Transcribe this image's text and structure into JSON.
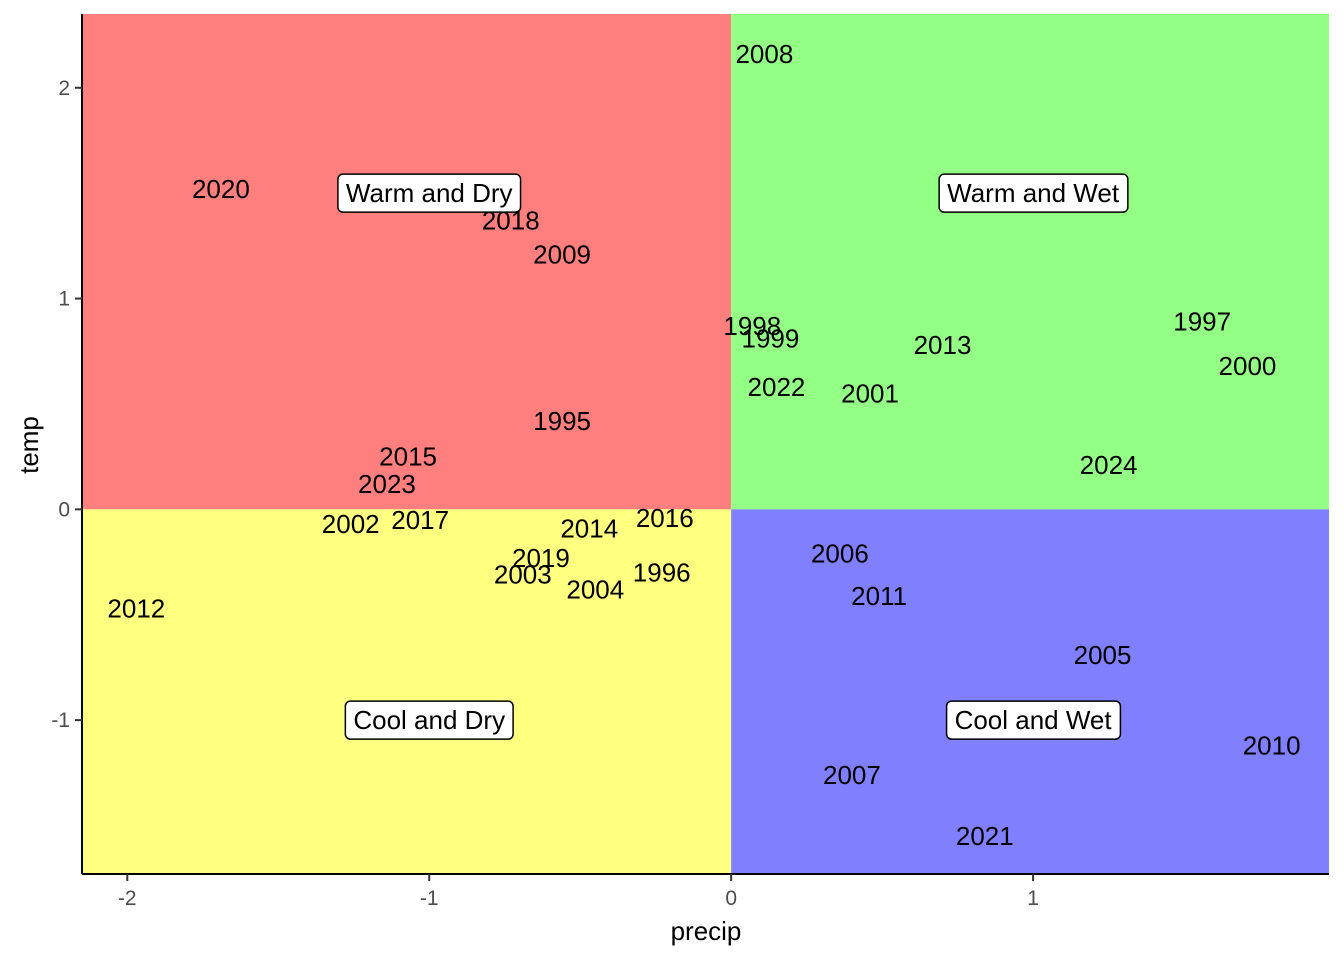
{
  "chart_data": {
    "type": "scatter",
    "xlabel": "precip",
    "ylabel": "temp",
    "xlim": [
      -2.15,
      1.98
    ],
    "ylim": [
      -1.73,
      2.35
    ],
    "x_ticks": [
      -2,
      -1,
      0,
      1
    ],
    "y_ticks": [
      -1,
      0,
      1,
      2
    ],
    "grid": false,
    "quadrants": [
      {
        "name": "Warm and Dry",
        "x_range": [
          -2.15,
          0
        ],
        "y_range": [
          0,
          2.35
        ],
        "color": "#FF7F7F",
        "label_x": -1,
        "label_y": 1.5
      },
      {
        "name": "Warm and Wet",
        "x_range": [
          0,
          1.98
        ],
        "y_range": [
          0,
          2.35
        ],
        "color": "#94FF85",
        "label_x": 1,
        "label_y": 1.5
      },
      {
        "name": "Cool and Dry",
        "x_range": [
          -2.15,
          0
        ],
        "y_range": [
          -1.73,
          0
        ],
        "color": "#FFFF80",
        "label_x": -1,
        "label_y": -1
      },
      {
        "name": "Cool and Wet",
        "x_range": [
          0,
          1.98
        ],
        "y_range": [
          -1.73,
          0
        ],
        "color": "#8080FF",
        "label_x": 1,
        "label_y": -1
      }
    ],
    "points": [
      {
        "label": "2008",
        "x": 0.11,
        "y": 2.16
      },
      {
        "label": "2020",
        "x": -1.69,
        "y": 1.52
      },
      {
        "label": "2018",
        "x": -0.73,
        "y": 1.37
      },
      {
        "label": "2009",
        "x": -0.56,
        "y": 1.21
      },
      {
        "label": "1998",
        "x": 0.07,
        "y": 0.87
      },
      {
        "label": "1999",
        "x": 0.13,
        "y": 0.81
      },
      {
        "label": "2013",
        "x": 0.7,
        "y": 0.78
      },
      {
        "label": "1997",
        "x": 1.56,
        "y": 0.89
      },
      {
        "label": "2000",
        "x": 1.71,
        "y": 0.68
      },
      {
        "label": "2022",
        "x": 0.15,
        "y": 0.58
      },
      {
        "label": "2001",
        "x": 0.46,
        "y": 0.55
      },
      {
        "label": "1995",
        "x": -0.56,
        "y": 0.42
      },
      {
        "label": "2024",
        "x": 1.25,
        "y": 0.21
      },
      {
        "label": "2015",
        "x": -1.07,
        "y": 0.25
      },
      {
        "label": "2023",
        "x": -1.14,
        "y": 0.12
      },
      {
        "label": "2002",
        "x": -1.26,
        "y": -0.07
      },
      {
        "label": "2017",
        "x": -1.03,
        "y": -0.05
      },
      {
        "label": "2016",
        "x": -0.22,
        "y": -0.04
      },
      {
        "label": "2014",
        "x": -0.47,
        "y": -0.09
      },
      {
        "label": "2019",
        "x": -0.63,
        "y": -0.23
      },
      {
        "label": "2003",
        "x": -0.69,
        "y": -0.31
      },
      {
        "label": "2004",
        "x": -0.45,
        "y": -0.38
      },
      {
        "label": "1996",
        "x": -0.23,
        "y": -0.3
      },
      {
        "label": "2012",
        "x": -1.97,
        "y": -0.47
      },
      {
        "label": "2006",
        "x": 0.36,
        "y": -0.21
      },
      {
        "label": "2011",
        "x": 0.49,
        "y": -0.41
      },
      {
        "label": "2005",
        "x": 1.23,
        "y": -0.69
      },
      {
        "label": "2010",
        "x": 1.79,
        "y": -1.12
      },
      {
        "label": "2007",
        "x": 0.4,
        "y": -1.26
      },
      {
        "label": "2021",
        "x": 0.84,
        "y": -1.55
      }
    ]
  }
}
